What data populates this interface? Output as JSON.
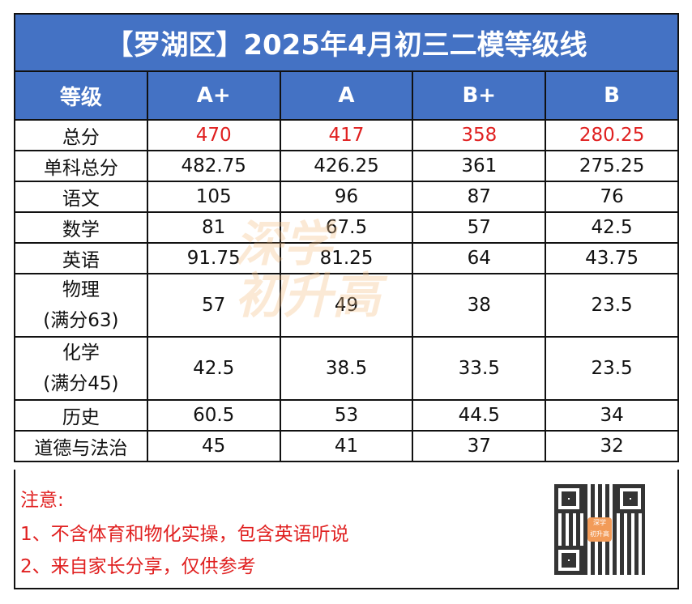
{
  "title": "【罗湖区】2025年4月初三二模等级线",
  "headers": [
    "等级",
    "A+",
    "A",
    "B+",
    "B"
  ],
  "rows": [
    {
      "label": "总分",
      "values": [
        "470",
        "417",
        "358",
        "280.25"
      ],
      "highlight": true
    },
    {
      "label": "单科总分",
      "values": [
        "482.75",
        "426.25",
        "361",
        "275.25"
      ]
    },
    {
      "label": "语文",
      "values": [
        "105",
        "96",
        "87",
        "76"
      ]
    },
    {
      "label": "数学",
      "values": [
        "81",
        "67.5",
        "57",
        "42.5"
      ]
    },
    {
      "label": "英语",
      "values": [
        "91.75",
        "81.25",
        "64",
        "43.75"
      ]
    },
    {
      "label": "物理",
      "sublabel": "(满分63)",
      "values": [
        "57",
        "49",
        "38",
        "23.5"
      ]
    },
    {
      "label": "化学",
      "sublabel": "(满分45)",
      "values": [
        "42.5",
        "38.5",
        "33.5",
        "23.5"
      ]
    },
    {
      "label": "历史",
      "values": [
        "60.5",
        "53",
        "44.5",
        "34"
      ]
    },
    {
      "label": "道德与法治",
      "values": [
        "45",
        "41",
        "37",
        "32"
      ]
    }
  ],
  "notes": [
    "注意:",
    "1、不含体育和物化实操，包含英语听说",
    "2、来自家长分享，仅供参考"
  ],
  "watermark": "深学 初升高",
  "qr_logo": "深学初升高",
  "colors": {
    "header": "#4472c4",
    "highlight": "#e02020"
  }
}
